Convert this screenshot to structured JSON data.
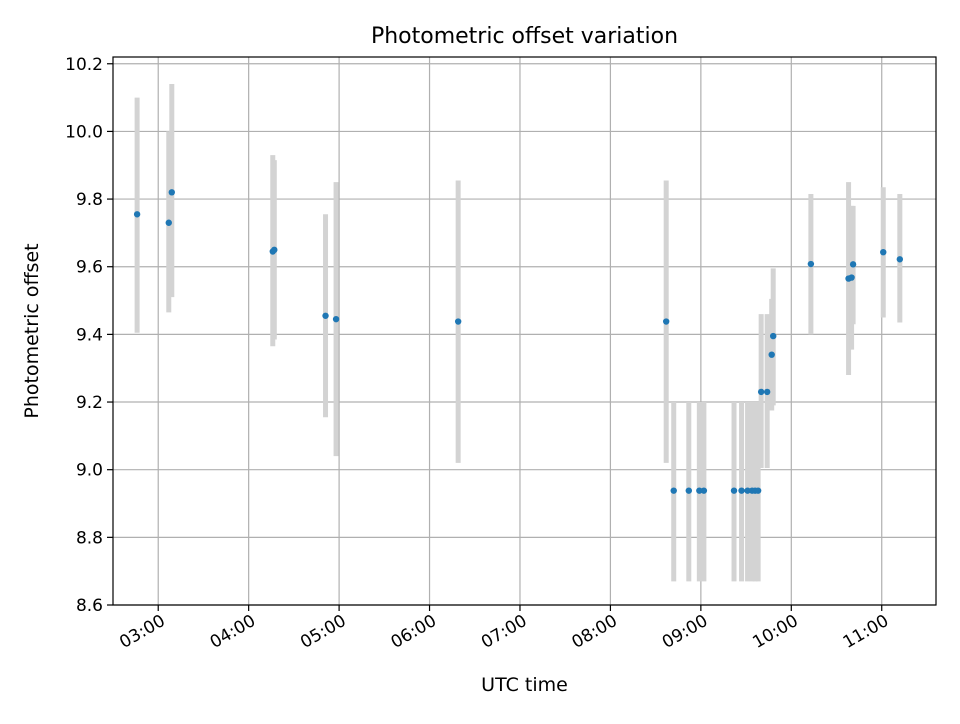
{
  "chart_data": {
    "type": "scatter",
    "title": "Photometric offset variation",
    "xlabel": "UTC time",
    "ylabel": "Photometric offset",
    "grid": true,
    "xlim": [
      "02:30",
      "11:36"
    ],
    "ylim": [
      8.6,
      10.22
    ],
    "x_ticks": [
      "03:00",
      "04:00",
      "05:00",
      "06:00",
      "07:00",
      "08:00",
      "09:00",
      "10:00",
      "11:00"
    ],
    "y_ticks": [
      "8.6",
      "8.8",
      "9.0",
      "9.2",
      "9.4",
      "9.6",
      "9.8",
      "10.0",
      "10.2"
    ],
    "marker_color": "#1f77b4",
    "errorbar_color": "#d3d3d3",
    "points": [
      {
        "x": "02:46",
        "y": 9.755,
        "ylow": 9.405,
        "yhigh": 10.1
      },
      {
        "x": "03:07",
        "y": 9.73,
        "ylow": 9.465,
        "yhigh": 10.0
      },
      {
        "x": "03:09",
        "y": 9.82,
        "ylow": 9.51,
        "yhigh": 10.14
      },
      {
        "x": "04:16",
        "y": 9.645,
        "ylow": 9.365,
        "yhigh": 9.93
      },
      {
        "x": "04:17",
        "y": 9.65,
        "ylow": 9.385,
        "yhigh": 9.915
      },
      {
        "x": "04:51",
        "y": 9.455,
        "ylow": 9.155,
        "yhigh": 9.755
      },
      {
        "x": "04:58",
        "y": 9.445,
        "ylow": 9.04,
        "yhigh": 9.85
      },
      {
        "x": "06:19",
        "y": 9.438,
        "ylow": 9.02,
        "yhigh": 9.855
      },
      {
        "x": "08:37",
        "y": 9.438,
        "ylow": 9.02,
        "yhigh": 9.855
      },
      {
        "x": "08:42",
        "y": 8.938,
        "ylow": 8.67,
        "yhigh": 9.2
      },
      {
        "x": "08:52",
        "y": 8.938,
        "ylow": 8.67,
        "yhigh": 9.2
      },
      {
        "x": "08:59",
        "y": 8.938,
        "ylow": 8.67,
        "yhigh": 9.2
      },
      {
        "x": "09:02",
        "y": 8.938,
        "ylow": 8.67,
        "yhigh": 9.2
      },
      {
        "x": "09:22",
        "y": 8.938,
        "ylow": 8.67,
        "yhigh": 9.2
      },
      {
        "x": "09:27",
        "y": 8.938,
        "ylow": 8.67,
        "yhigh": 9.2
      },
      {
        "x": "09:31",
        "y": 8.938,
        "ylow": 8.67,
        "yhigh": 9.2
      },
      {
        "x": "09:34",
        "y": 8.938,
        "ylow": 8.67,
        "yhigh": 9.2
      },
      {
        "x": "09:36",
        "y": 8.938,
        "ylow": 8.67,
        "yhigh": 9.2
      },
      {
        "x": "09:38",
        "y": 8.938,
        "ylow": 8.67,
        "yhigh": 9.2
      },
      {
        "x": "09:40",
        "y": 9.23,
        "ylow": 9.005,
        "yhigh": 9.46
      },
      {
        "x": "09:44",
        "y": 9.23,
        "ylow": 9.005,
        "yhigh": 9.46
      },
      {
        "x": "09:47",
        "y": 9.34,
        "ylow": 9.175,
        "yhigh": 9.505
      },
      {
        "x": "09:48",
        "y": 9.395,
        "ylow": 9.19,
        "yhigh": 9.595
      },
      {
        "x": "10:13",
        "y": 9.608,
        "ylow": 9.4,
        "yhigh": 9.815
      },
      {
        "x": "10:38",
        "y": 9.565,
        "ylow": 9.28,
        "yhigh": 9.85
      },
      {
        "x": "10:40",
        "y": 9.568,
        "ylow": 9.355,
        "yhigh": 9.78
      },
      {
        "x": "10:41",
        "y": 9.607,
        "ylow": 9.43,
        "yhigh": 9.78
      },
      {
        "x": "11:01",
        "y": 9.643,
        "ylow": 9.45,
        "yhigh": 9.835
      },
      {
        "x": "11:12",
        "y": 9.622,
        "ylow": 9.435,
        "yhigh": 9.815
      }
    ]
  }
}
